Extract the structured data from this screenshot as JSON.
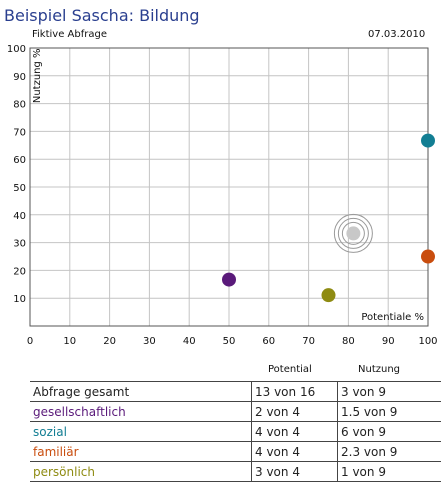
{
  "header": {
    "title": "Beispiel Sascha: Bildung",
    "subtitle": "Fiktive Abfrage",
    "date": "07.03.2010"
  },
  "chart_data": {
    "type": "scatter",
    "xlabel": "Potentiale %",
    "ylabel": "Nutzung %",
    "xlim": [
      0,
      100
    ],
    "ylim": [
      0,
      100
    ],
    "x_ticks": [
      0,
      10,
      20,
      30,
      40,
      50,
      60,
      70,
      80,
      90,
      100
    ],
    "y_ticks": [
      10,
      20,
      30,
      40,
      50,
      60,
      70,
      80,
      90,
      100
    ],
    "grid": true,
    "series": [
      {
        "name": "gesellschaftlich",
        "x": [
          50
        ],
        "y": [
          16.7
        ],
        "color": "#5a1a7a"
      },
      {
        "name": "sozial",
        "x": [
          100
        ],
        "y": [
          66.7
        ],
        "color": "#127e93"
      },
      {
        "name": "familiär",
        "x": [
          100
        ],
        "y": [
          25
        ],
        "color": "#c94d0e"
      },
      {
        "name": "persönlich",
        "x": [
          75
        ],
        "y": [
          11.1
        ],
        "color": "#8e8b12"
      },
      {
        "name": "Abfrage gesamt",
        "x": [
          81.25
        ],
        "y": [
          33.3
        ],
        "color": "#c8c8c8"
      }
    ]
  },
  "table": {
    "headers": {
      "potential": "Potential",
      "nutzung": "Nutzung"
    },
    "rows": [
      {
        "label": "Abfrage gesamt",
        "potential": "13 von 16",
        "nutzung": "3 von 9",
        "color": "#222222"
      },
      {
        "label": "gesellschaftlich",
        "potential": "2 von 4",
        "nutzung": "1.5 von 9",
        "color": "#5a1a7a"
      },
      {
        "label": "sozial",
        "potential": "4 von 4",
        "nutzung": "6 von 9",
        "color": "#127e93"
      },
      {
        "label": "familiär",
        "potential": "4 von 4",
        "nutzung": "2.3 von 9",
        "color": "#c94d0e"
      },
      {
        "label": "persönlich",
        "potential": "3 von 4",
        "nutzung": "1 von 9",
        "color": "#8e8b12"
      }
    ]
  }
}
